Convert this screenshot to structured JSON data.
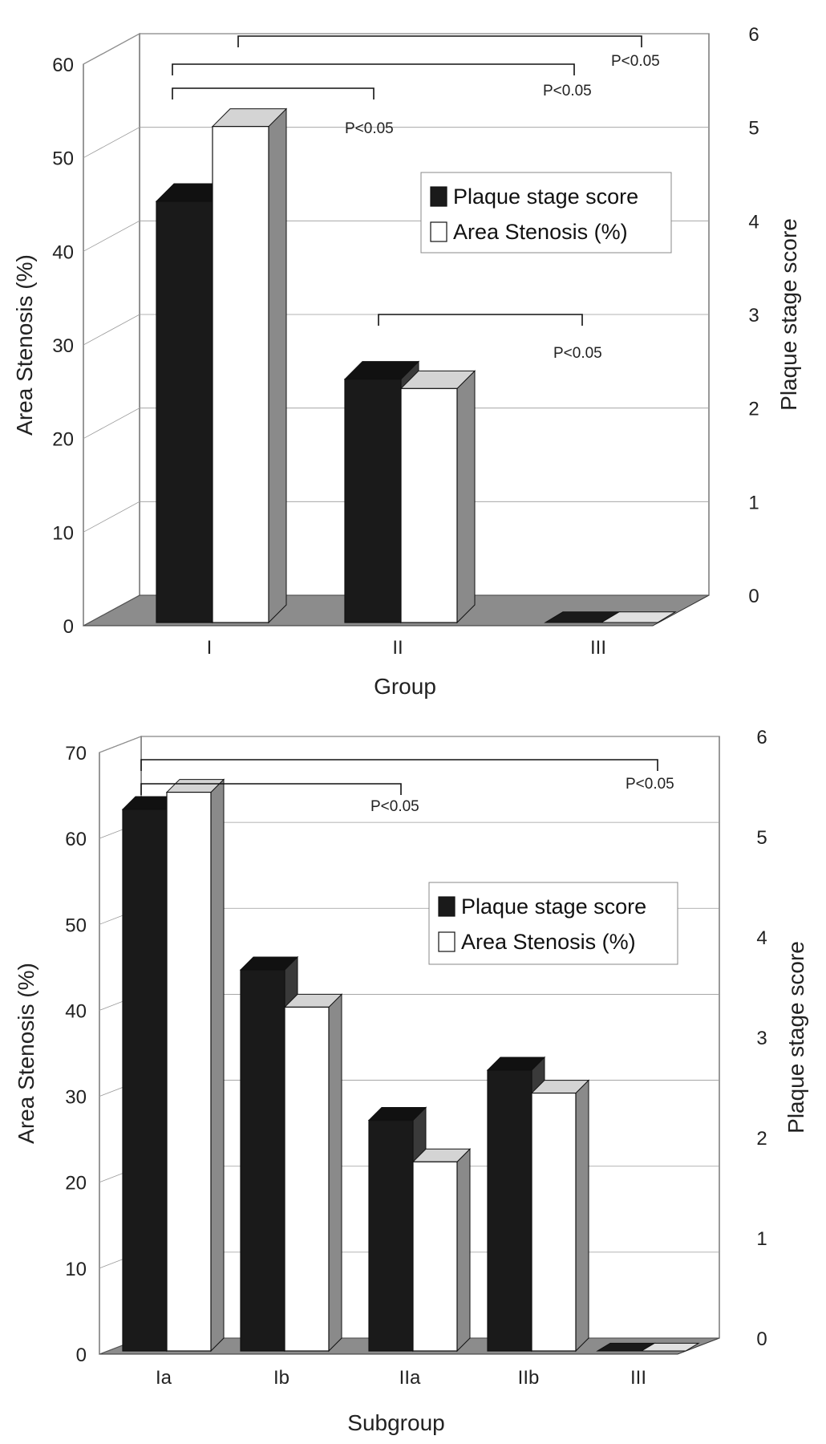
{
  "chart_data": [
    {
      "type": "bar",
      "title": "",
      "categories": [
        "I",
        "II",
        "III"
      ],
      "xlabel": "Group",
      "ylabel": "Area Stenosis (%)",
      "y2label": "Plaque stage score",
      "ylim": [
        0,
        60
      ],
      "yticks": [
        "0",
        "10",
        "20",
        "30",
        "40",
        "50",
        "60"
      ],
      "y2lim": [
        0,
        6
      ],
      "y2ticks": [
        "0",
        "1",
        "2",
        "3",
        "4",
        "5",
        "6"
      ],
      "series": [
        {
          "name": "Plaque stage score",
          "axis": "right",
          "color": "#1a1a1a",
          "values": [
            4.5,
            2.6,
            0
          ]
        },
        {
          "name": "Area Stenosis (%)",
          "axis": "left",
          "color": "#ffffff",
          "values": [
            53,
            25,
            0
          ]
        }
      ],
      "legend": "upper-right",
      "grid": true,
      "annotations": [
        {
          "text": "P<0.05",
          "from": "I",
          "to": "II"
        },
        {
          "text": "P<0.05",
          "from": "I",
          "to": "III"
        },
        {
          "text": "P<0.05",
          "from": "I",
          "to": "III"
        },
        {
          "text": "P<0.05",
          "from": "II",
          "to": "III"
        }
      ]
    },
    {
      "type": "bar",
      "title": "",
      "categories": [
        "Ia",
        "Ib",
        "IIa",
        "IIb",
        "III"
      ],
      "xlabel": "Subgroup",
      "ylabel": "Area Stenosis (%)",
      "y2label": "Plaque stage score",
      "ylim": [
        0,
        70
      ],
      "yticks": [
        "0",
        "10",
        "20",
        "30",
        "40",
        "50",
        "60",
        "70"
      ],
      "y2lim": [
        0,
        6
      ],
      "y2ticks": [
        "0",
        "1",
        "2",
        "3",
        "4",
        "5",
        "6"
      ],
      "series": [
        {
          "name": "Plaque stage score",
          "axis": "right",
          "color": "#1a1a1a",
          "values": [
            5.4,
            3.8,
            2.3,
            2.8,
            0
          ]
        },
        {
          "name": "Area Stenosis (%)",
          "axis": "left",
          "color": "#ffffff",
          "values": [
            65,
            40,
            22,
            30,
            0
          ]
        }
      ],
      "legend": "upper-right",
      "grid": true,
      "annotations": [
        {
          "text": "P<0.05",
          "from": "Ia",
          "to": "IIa"
        },
        {
          "text": "P<0.05",
          "from": "Ia",
          "to": "III"
        }
      ]
    }
  ]
}
